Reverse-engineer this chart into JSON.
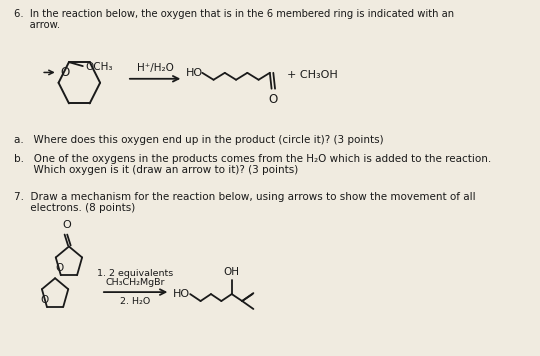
{
  "background_color": "#f0ebe0",
  "title_q6_1": "6.  In the reaction below, the oxygen that is in the 6 membered ring is indicated with an",
  "title_q6_2": "     arrow.",
  "reagent_q6": "H⁺/H₂O",
  "product_q6_right": "+ CH₃OH",
  "label_OCH3": "OCH₃",
  "sub_a": "a.   Where does this oxygen end up in the product (circle it)? (3 points)",
  "sub_b_1": "b.   One of the oxygens in the products comes from the H₂O which is added to the reaction.",
  "sub_b_2": "      Which oxygen is it (draw an arrow to it)? (3 points)",
  "title_q7_1": "7.  Draw a mechanism for the reaction below, using arrows to show the movement of all",
  "title_q7_2": "     electrons. (8 points)",
  "reagent_q7_1": "1. 2 equivalents",
  "reagent_q7_2": "CH₃CH₂MgBr",
  "reagent_q7_3": "2. H₂O",
  "label_HO_q6": "HO",
  "label_HO_q7": "HO",
  "label_OH": "OH",
  "label_O_q7": "O",
  "text_color": "#1a1a1a",
  "line_color": "#1a1a1a"
}
